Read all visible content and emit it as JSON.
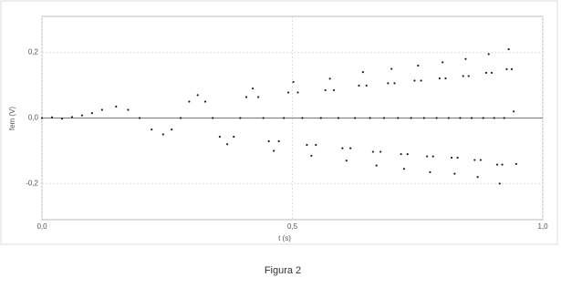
{
  "chart_data": {
    "type": "scatter",
    "xlabel": "t (s)",
    "ylabel": "fem (V)",
    "caption": "Figura 2",
    "x": [
      0,
      0.02,
      0.04,
      0.06,
      0.08,
      0.1,
      0.12,
      0.148,
      0.172,
      0.195,
      0.219,
      0.242,
      0.259,
      0.277,
      0.294,
      0.311,
      0.326,
      0.341,
      0.355,
      0.37,
      0.383,
      0.396,
      0.408,
      0.421,
      0.432,
      0.442,
      0.453,
      0.463,
      0.473,
      0.483,
      0.492,
      0.502,
      0.511,
      0.52,
      0.529,
      0.538,
      0.547,
      0.557,
      0.566,
      0.575,
      0.583,
      0.592,
      0.6,
      0.608,
      0.616,
      0.625,
      0.633,
      0.641,
      0.648,
      0.655,
      0.661,
      0.668,
      0.676,
      0.683,
      0.691,
      0.698,
      0.704,
      0.711,
      0.717,
      0.723,
      0.73,
      0.737,
      0.744,
      0.751,
      0.757,
      0.763,
      0.769,
      0.775,
      0.781,
      0.788,
      0.794,
      0.8,
      0.806,
      0.812,
      0.818,
      0.824,
      0.83,
      0.835,
      0.841,
      0.846,
      0.852,
      0.858,
      0.864,
      0.87,
      0.876,
      0.881,
      0.887,
      0.892,
      0.898,
      0.903,
      0.909,
      0.914,
      0.919,
      0.923,
      0.928,
      0.932,
      0.938,
      0.942,
      0.947
    ],
    "values": [
      0,
      0.002,
      -0.002,
      0.003,
      0.008,
      0.015,
      0.025,
      0.035,
      0.025,
      0,
      -0.035,
      -0.05,
      -0.035,
      0,
      0.05,
      0.07,
      0.05,
      0,
      -0.057,
      -0.08,
      -0.057,
      0,
      0.064,
      0.09,
      0.064,
      0,
      -0.071,
      -0.1,
      -0.071,
      0,
      0.078,
      0.11,
      0.078,
      0,
      -0.082,
      -0.115,
      -0.082,
      0,
      0.085,
      0.12,
      0.085,
      0,
      -0.092,
      -0.13,
      -0.092,
      0,
      0.099,
      0.14,
      0.099,
      0,
      -0.103,
      -0.145,
      -0.103,
      0,
      0.106,
      0.15,
      0.106,
      0,
      -0.11,
      -0.155,
      -0.11,
      0,
      0.114,
      0.16,
      0.114,
      0,
      -0.117,
      -0.165,
      -0.117,
      0,
      0.121,
      0.17,
      0.121,
      0,
      -0.121,
      -0.17,
      -0.121,
      0,
      0.128,
      0.18,
      0.128,
      0,
      -0.128,
      -0.18,
      -0.128,
      0,
      0.138,
      0.195,
      0.138,
      0,
      -0.142,
      -0.2,
      -0.142,
      0,
      0.149,
      0.21,
      0.149,
      0.02,
      -0.14
    ],
    "color": "#222222",
    "xlim": [
      0,
      1.0
    ],
    "ylim": [
      -0.31,
      0.31
    ],
    "xticks": [
      {
        "value": 0,
        "label": "0,0"
      },
      {
        "value": 0.5,
        "label": "0,5"
      },
      {
        "value": 1.0,
        "label": "1,0"
      }
    ],
    "yticks": [
      {
        "value": -0.2,
        "label": "-0,2"
      },
      {
        "value": 0,
        "label": "0,0"
      },
      {
        "value": 0.2,
        "label": "0,2"
      }
    ],
    "grid": true
  }
}
